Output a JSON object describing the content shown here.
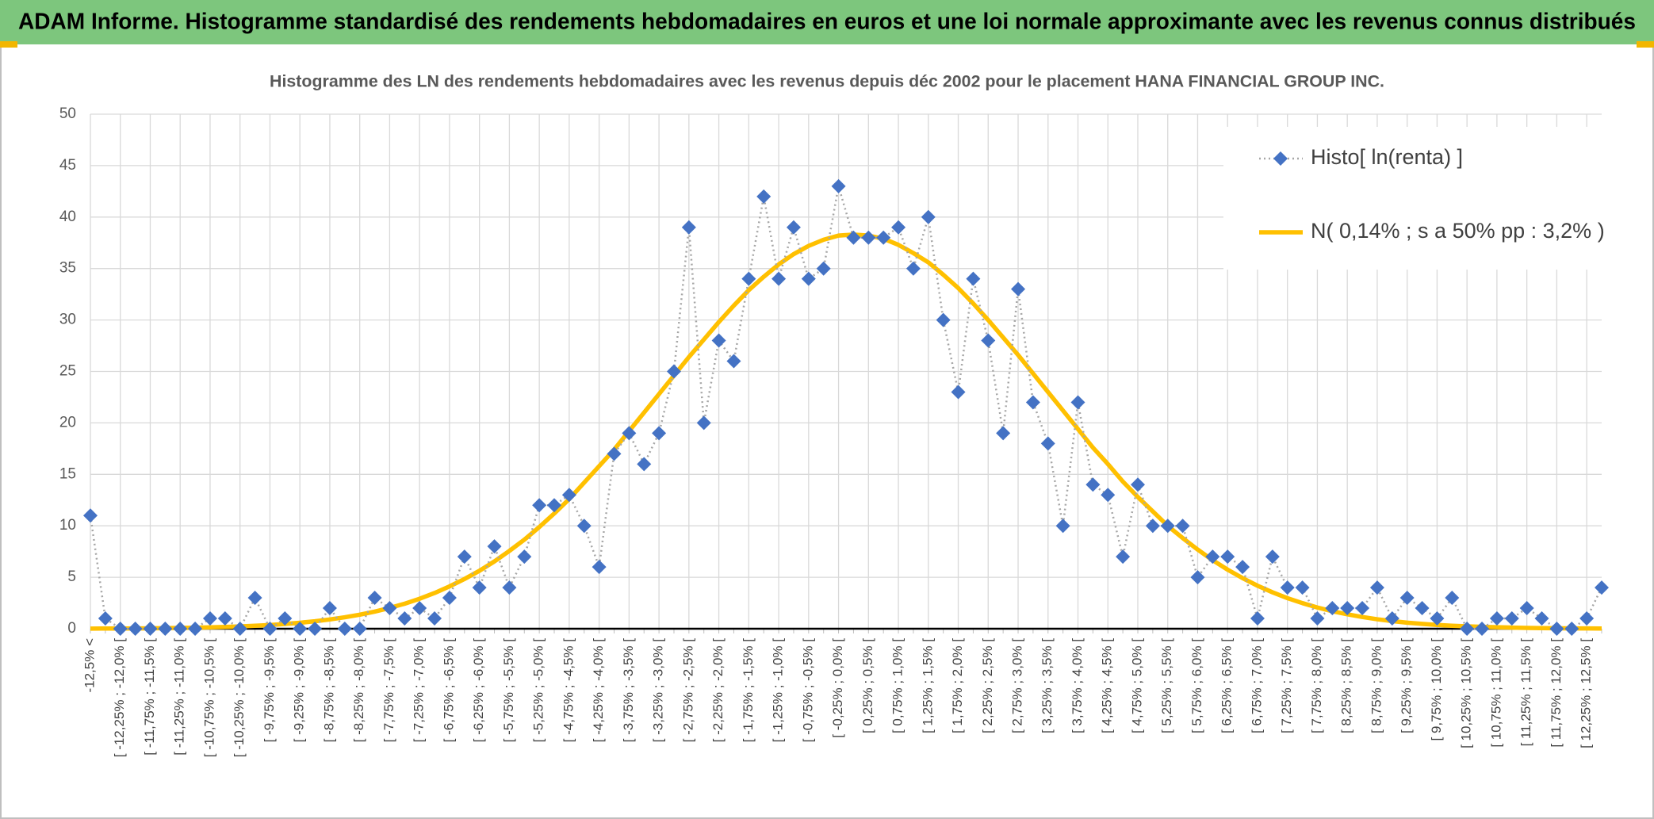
{
  "header": {
    "title": "ADAM Informe. Histogramme standardisé des rendements hebdomadaires en euros et une loi normale approximante avec les revenus connus distribués"
  },
  "chart_data": {
    "type": "line",
    "title": "Histogramme des LN des rendements hebdomadaires avec les revenus depuis déc 2002 pour le placement HANA FINANCIAL GROUP INC.",
    "categories": [
      "-12,5% <",
      null,
      "[ -12,25% ; -12,0% [",
      null,
      "[ -11,75% ; -11,5% [",
      null,
      "[ -11,25% ; -11,0% [",
      null,
      "[ -10,75% ; -10,5% [",
      null,
      "[ -10,25% ; -10,0% [",
      null,
      "[ -9,75% ; -9,5% [",
      null,
      "[ -9,25% ; -9,0% [",
      null,
      "[ -8,75% ; -8,5% [",
      null,
      "[ -8,25% ; -8,0% [",
      null,
      "[ -7,75% ; -7,5% [",
      null,
      "[ -7,25% ; -7,0% [",
      null,
      "[ -6,75% ; -6,5% [",
      null,
      "[ -6,25% ; -6,0% [",
      null,
      "[ -5,75% ; -5,5% [",
      null,
      "[ -5,25% ; -5,0% [",
      null,
      "[ -4,75% ; -4,5% [",
      null,
      "[ -4,25% ; -4,0% [",
      null,
      "[ -3,75% ; -3,5% [",
      null,
      "[ -3,25% ; -3,0% [",
      null,
      "[ -2,75% ; -2,5% [",
      null,
      "[ -2,25% ; -2,0% [",
      null,
      "[ -1,75% ; -1,5% [",
      null,
      "[ -1,25% ; -1,0% [",
      null,
      "[ -0,75% ; -0,5% [",
      null,
      "[ -0,25% ; 0,0% [",
      null,
      "[ 0,25% ; 0,5% [",
      null,
      "[ 0,75% ; 1,0% [",
      null,
      "[ 1,25% ; 1,5% [",
      null,
      "[ 1,75% ; 2,0% [",
      null,
      "[ 2,25% ; 2,5% [",
      null,
      "[ 2,75% ; 3,0% [",
      null,
      "[ 3,25% ; 3,5% [",
      null,
      "[ 3,75% ; 4,0% [",
      null,
      "[ 4,25% ; 4,5% [",
      null,
      "[ 4,75% ; 5,0% [",
      null,
      "[ 5,25% ; 5,5% [",
      null,
      "[ 5,75% ; 6,0% [",
      null,
      "[ 6,25% ; 6,5% [",
      null,
      "[ 6,75% ; 7,0% [",
      null,
      "[ 7,25% ; 7,5% [",
      null,
      "[ 7,75% ; 8,0% [",
      null,
      "[ 8,25% ; 8,5% [",
      null,
      "[ 8,75% ; 9,0% [",
      null,
      "[ 9,25% ; 9,5% [",
      null,
      "[ 9,75% ; 10,0% [",
      null,
      "[ 10,25% ; 10,5% [",
      null,
      "[ 10,75% ; 11,0% [",
      null,
      "[ 11,25% ; 11,5% [",
      null,
      "[ 11,75% ; 12,0% [",
      null,
      "[ 12,25% ; 12,5% [",
      null
    ],
    "series": [
      {
        "name": "Histo[ ln(renta) ]",
        "color": "#4472c4",
        "line_color": "#a6a6a6",
        "line_style": "dotted",
        "marker": "diamond",
        "values": [
          11,
          1,
          0,
          0,
          0,
          0,
          0,
          0,
          1,
          1,
          0,
          3,
          0,
          1,
          0,
          0,
          2,
          0,
          0,
          3,
          2,
          1,
          2,
          1,
          3,
          7,
          4,
          8,
          4,
          7,
          12,
          12,
          13,
          10,
          6,
          17,
          19,
          16,
          19,
          25,
          39,
          20,
          28,
          26,
          34,
          42,
          34,
          39,
          34,
          35,
          43,
          38,
          38,
          38,
          39,
          35,
          40,
          30,
          23,
          34,
          28,
          19,
          33,
          22,
          18,
          10,
          22,
          14,
          13,
          7,
          14,
          10,
          10,
          10,
          5,
          7,
          7,
          6,
          1,
          7,
          4,
          4,
          1,
          2,
          2,
          2,
          4,
          1,
          3,
          2,
          1,
          3,
          0,
          0,
          1,
          1,
          2,
          1,
          0,
          0,
          1,
          4
        ]
      },
      {
        "name": "N( 0,14% ; s a 50% pp : 3,2% )",
        "color": "#ffc000",
        "line_style": "solid",
        "marker": "none",
        "values": [
          0.01,
          0.02,
          0.02,
          0.03,
          0.04,
          0.06,
          0.08,
          0.1,
          0.13,
          0.17,
          0.22,
          0.29,
          0.36,
          0.46,
          0.58,
          0.72,
          0.9,
          1.11,
          1.36,
          1.66,
          2.02,
          2.43,
          2.91,
          3.47,
          4.11,
          4.83,
          5.63,
          6.54,
          7.56,
          8.65,
          9.88,
          11.2,
          12.6,
          14.2,
          15.8,
          17.4,
          19.2,
          21.0,
          22.8,
          24.6,
          26.4,
          28.1,
          29.8,
          31.4,
          32.9,
          34.2,
          35.4,
          36.4,
          37.2,
          37.8,
          38.2,
          38.3,
          38.2,
          37.9,
          37.3,
          36.5,
          35.6,
          34.4,
          33.1,
          31.6,
          30.0,
          28.3,
          26.6,
          24.8,
          23.0,
          21.2,
          19.4,
          17.6,
          16.0,
          14.3,
          12.8,
          11.4,
          10.0,
          8.81,
          7.69,
          6.66,
          5.74,
          4.92,
          4.18,
          3.54,
          2.97,
          2.49,
          2.06,
          1.7,
          1.4,
          1.14,
          0.92,
          0.74,
          0.59,
          0.47,
          0.37,
          0.29,
          0.23,
          0.18,
          0.14,
          0.11,
          0.08,
          0.06,
          0.05,
          0.03,
          0.03,
          0.02
        ]
      }
    ],
    "ylim": [
      0,
      50
    ],
    "yticks": [
      0,
      5,
      10,
      15,
      20,
      25,
      30,
      35,
      40,
      45,
      50
    ],
    "grid": true,
    "legend": "top-right"
  }
}
